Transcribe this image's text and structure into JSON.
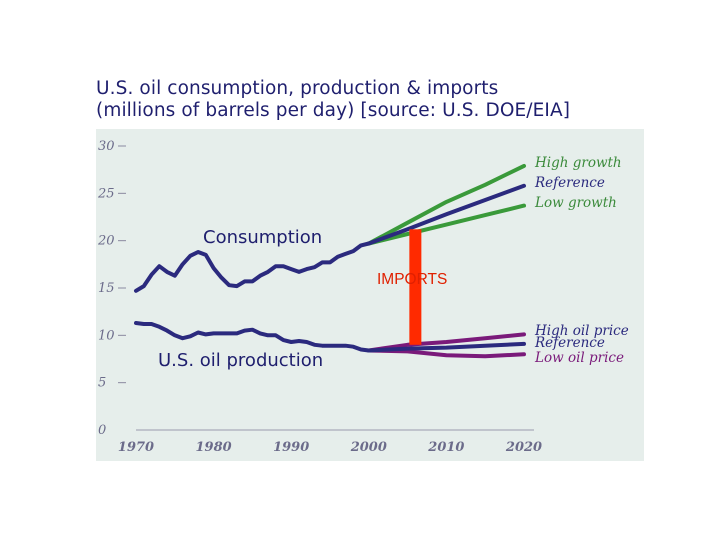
{
  "chart_data": {
    "type": "line",
    "title": "U.S. oil consumption, production & imports",
    "subtitle": "(millions of barrels per day)  [source: U.S. DOE/EIA]",
    "xlim": [
      1970,
      2020
    ],
    "ylim": [
      0,
      30
    ],
    "x_ticks": [
      "1970",
      "1980",
      "1990",
      "2000",
      "2010",
      "2020"
    ],
    "y_ticks": [
      "0",
      "5",
      "10",
      "15",
      "20",
      "25",
      "30"
    ],
    "grid": false,
    "colors": {
      "background": "#e6eeeb",
      "historical": "#2b2a7e",
      "high_growth": "#3a9a3a",
      "low_growth": "#3a9a3a",
      "reference": "#2b2a7e",
      "high_oil_price": "#7a1a7a",
      "low_oil_price": "#7a1a7a",
      "imports_bar": "#ff2a00",
      "legend_green": "#3a8a3a",
      "legend_navy": "#2b2a7e",
      "legend_purple": "#7a1a7a"
    },
    "series": [
      {
        "group": "consumption",
        "kind": "historical",
        "x": [
          1970,
          1971,
          1972,
          1973,
          1974,
          1975,
          1976,
          1977,
          1978,
          1979,
          1980,
          1981,
          1982,
          1983,
          1984,
          1985,
          1986,
          1987,
          1988,
          1989,
          1990,
          1991,
          1992,
          1993,
          1994,
          1995,
          1996,
          1997,
          1998,
          1999,
          2000
        ],
        "y": [
          14.7,
          15.2,
          16.4,
          17.3,
          16.7,
          16.3,
          17.5,
          18.4,
          18.8,
          18.5,
          17.1,
          16.1,
          15.3,
          15.2,
          15.7,
          15.7,
          16.3,
          16.7,
          17.3,
          17.3,
          17.0,
          16.7,
          17.0,
          17.2,
          17.7,
          17.7,
          18.3,
          18.6,
          18.9,
          19.5,
          19.7
        ]
      },
      {
        "group": "production",
        "kind": "historical",
        "x": [
          1970,
          1971,
          1972,
          1973,
          1974,
          1975,
          1976,
          1977,
          1978,
          1979,
          1980,
          1981,
          1982,
          1983,
          1984,
          1985,
          1986,
          1987,
          1988,
          1989,
          1990,
          1991,
          1992,
          1993,
          1994,
          1995,
          1996,
          1997,
          1998,
          1999,
          2000
        ],
        "y": [
          11.3,
          11.2,
          11.2,
          10.9,
          10.5,
          10.0,
          9.7,
          9.9,
          10.3,
          10.1,
          10.2,
          10.2,
          10.2,
          10.2,
          10.5,
          10.6,
          10.2,
          10.0,
          10.0,
          9.5,
          9.3,
          9.4,
          9.3,
          9.0,
          8.9,
          8.9,
          8.9,
          8.9,
          8.8,
          8.5,
          8.4
        ]
      },
      {
        "name": "High growth",
        "group": "consumption",
        "kind": "projection",
        "x": [
          2000,
          2005,
          2010,
          2015,
          2020
        ],
        "y": [
          19.7,
          21.9,
          24.1,
          25.9,
          27.9
        ]
      },
      {
        "name": "Reference",
        "group": "consumption",
        "kind": "projection",
        "x": [
          2000,
          2005,
          2010,
          2015,
          2020
        ],
        "y": [
          19.7,
          21.2,
          22.8,
          24.3,
          25.8
        ]
      },
      {
        "name": "Low growth",
        "group": "consumption",
        "kind": "projection",
        "x": [
          2000,
          2005,
          2010,
          2015,
          2020
        ],
        "y": [
          19.7,
          20.7,
          21.7,
          22.7,
          23.7
        ]
      },
      {
        "name": "High oil price",
        "group": "production",
        "kind": "projection",
        "x": [
          2000,
          2005,
          2010,
          2015,
          2020
        ],
        "y": [
          8.4,
          9.0,
          9.3,
          9.7,
          10.1
        ]
      },
      {
        "name": "Reference",
        "group": "production",
        "kind": "projection",
        "x": [
          2000,
          2005,
          2010,
          2015,
          2020
        ],
        "y": [
          8.4,
          8.6,
          8.7,
          8.9,
          9.1
        ]
      },
      {
        "name": "Low oil price",
        "group": "production",
        "kind": "projection",
        "x": [
          2000,
          2005,
          2010,
          2015,
          2020
        ],
        "y": [
          8.4,
          8.3,
          7.9,
          7.8,
          8.0
        ]
      }
    ],
    "imports_bar": {
      "x": 2006,
      "y_from": 9.0,
      "y_to": 21.2
    },
    "annotations": {
      "consumption": "Consumption",
      "production": "U.S. oil production",
      "imports": "IMPORTS"
    },
    "legend_upper": [
      {
        "label": "High growth",
        "color": "#3a8a3a"
      },
      {
        "label": "Reference",
        "color": "#2b2a7e"
      },
      {
        "label": "Low growth",
        "color": "#3a8a3a"
      }
    ],
    "legend_lower": [
      {
        "label": "High oil price",
        "color": "#2b2a7e"
      },
      {
        "label": "Reference",
        "color": "#2b2a7e"
      },
      {
        "label": "Low oil price",
        "color": "#7a1a7a"
      }
    ]
  }
}
